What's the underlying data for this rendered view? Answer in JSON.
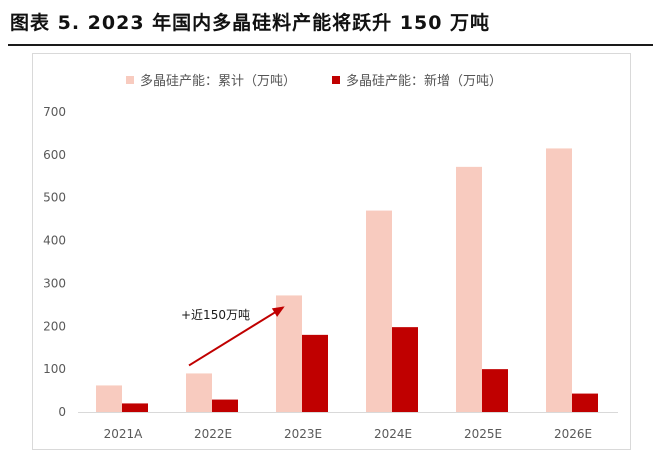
{
  "figure_title": "图表 5. 2023 年国内多晶硅料产能将跃升 150 万吨",
  "colors": {
    "cumulative": "#f8cbbf",
    "new": "#c00000",
    "axis": "#d9d9d9",
    "grid": "#ececec",
    "tick_text": "#595959",
    "arrow": "#c00000"
  },
  "chart_data": {
    "type": "bar",
    "categories": [
      "2021A",
      "2022E",
      "2023E",
      "2024E",
      "2025E",
      "2026E"
    ],
    "series": [
      {
        "name": "多晶硅产能：累计（万吨）",
        "values": [
          62,
          90,
          272,
          470,
          572,
          615
        ]
      },
      {
        "name": "多晶硅产能：新增（万吨）",
        "values": [
          20,
          29,
          180,
          198,
          100,
          43
        ]
      }
    ],
    "ylim": [
      0,
      700
    ],
    "yticks": [
      0,
      100,
      200,
      300,
      400,
      500,
      600,
      700
    ],
    "grid": false,
    "legend": "top",
    "annotations": [
      {
        "text": "+近150万吨",
        "arrow": {
          "from_category": "2022E",
          "to_category": "2023E",
          "series": "多晶硅产能：累计（万吨）"
        }
      }
    ]
  }
}
